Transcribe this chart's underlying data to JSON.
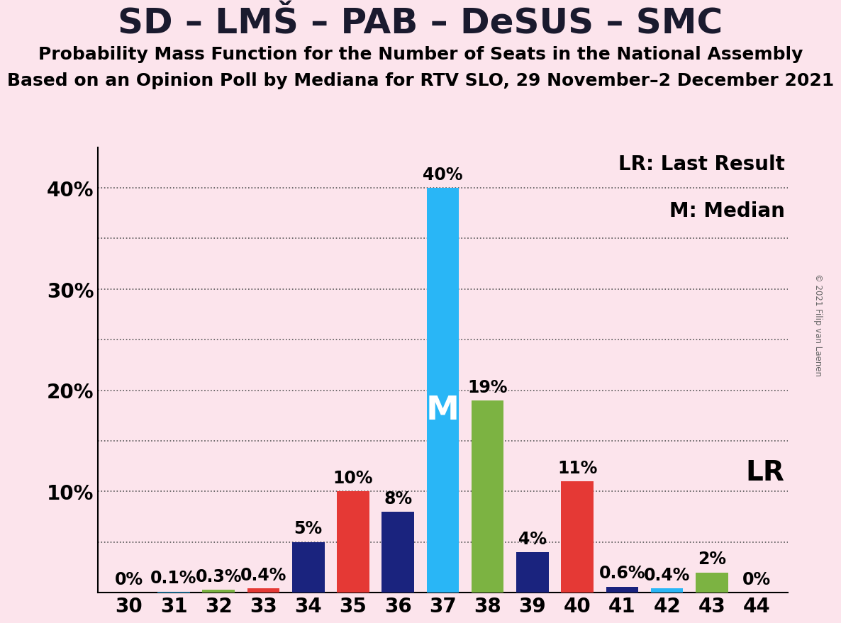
{
  "title": "SD – LMŠ – PAB – DeSUS – SMC",
  "subtitle1": "Probability Mass Function for the Number of Seats in the National Assembly",
  "subtitle2": "Based on an Opinion Poll by Mediana for RTV SLO, 29 November–2 December 2021",
  "copyright": "© 2021 Filip van Laenen",
  "background_color": "#fce4ec",
  "x_values": [
    30,
    31,
    32,
    33,
    34,
    35,
    36,
    37,
    38,
    39,
    40,
    41,
    42,
    43,
    44
  ],
  "y_values": [
    0.0,
    0.1,
    0.3,
    0.4,
    5.0,
    10.0,
    8.0,
    40.0,
    19.0,
    4.0,
    11.0,
    0.6,
    0.4,
    2.0,
    0.0
  ],
  "bar_labels": [
    "0%",
    "0.1%",
    "0.3%",
    "0.4%",
    "5%",
    "10%",
    "8%",
    "40%",
    "19%",
    "4%",
    "11%",
    "0.6%",
    "0.4%",
    "2%",
    "0%"
  ],
  "bar_colors": [
    "#1a237e",
    "#29b6f6",
    "#7cb342",
    "#e53935",
    "#1a237e",
    "#e53935",
    "#1a237e",
    "#29b6f6",
    "#7cb342",
    "#1a237e",
    "#e53935",
    "#1a237e",
    "#29b6f6",
    "#7cb342",
    "#1a237e"
  ],
  "median_seat": 37,
  "legend_lr": "LR: Last Result",
  "legend_m": "M: Median",
  "lr_label": "LR",
  "m_label": "M",
  "ylim_max": 44,
  "ytick_values": [
    10,
    20,
    30,
    40
  ],
  "ytick_labels": [
    "10%",
    "20%",
    "30%",
    "40%"
  ],
  "grid_y_values": [
    5,
    10,
    15,
    20,
    25,
    30,
    35,
    40
  ],
  "title_fontsize": 36,
  "subtitle_fontsize": 18,
  "tick_fontsize": 20,
  "annotation_fontsize": 17,
  "legend_fontsize": 20,
  "lr_fontsize": 28,
  "m_inside_fontsize": 34
}
